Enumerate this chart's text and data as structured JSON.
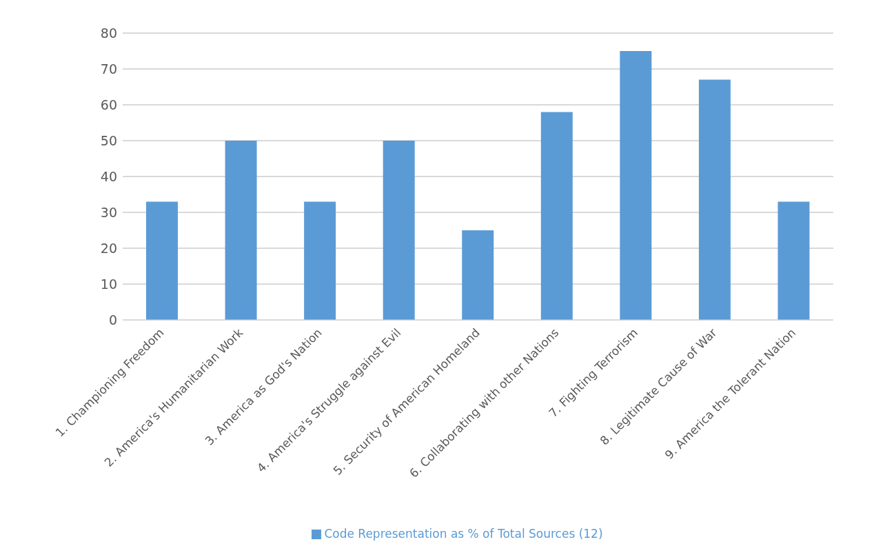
{
  "chart_data": {
    "type": "bar",
    "categories": [
      "1. Championing Freedom",
      "2. America's Humanitarian Work",
      "3. America as God's Nation",
      "4. America's Struggle against Evil",
      "5. Security of American Homeland",
      "6. Collaborating with other Nations",
      "7. Fighting Terrorism",
      "8. Legitimate Cause of War",
      "9. America the Tolerant Nation"
    ],
    "series": [
      {
        "name": "Code Representation as % of  Total Sources (12)",
        "color": "#5b9bd5",
        "values": [
          33,
          50,
          33,
          50,
          25,
          58,
          75,
          67,
          33
        ]
      }
    ],
    "ylim": [
      0,
      80
    ],
    "yticks": [
      0,
      10,
      20,
      30,
      40,
      50,
      60,
      70,
      80
    ],
    "grid": "y",
    "legend": "bottom"
  }
}
